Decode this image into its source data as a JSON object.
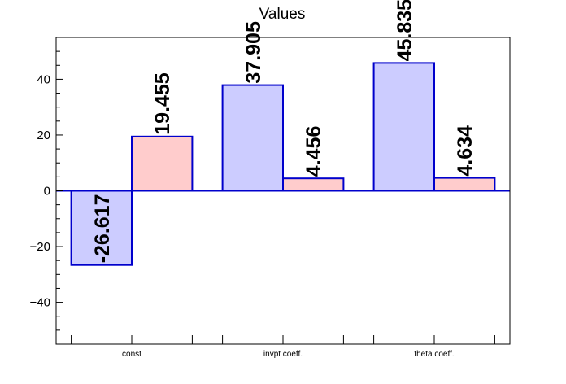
{
  "chart_data": {
    "type": "bar",
    "title": "Values",
    "xlabel": "",
    "ylabel": "",
    "categories": [
      "const",
      "invpt coeff.",
      "theta coeff."
    ],
    "series": [
      {
        "values": [
          -26.617,
          37.905,
          45.835
        ],
        "labels": [
          "-26.617",
          "37.905",
          "45.835"
        ]
      },
      {
        "values": [
          19.455,
          4.456,
          4.634
        ],
        "labels": [
          "19.455",
          "4.456",
          "4.634"
        ]
      }
    ],
    "ylim": [
      -55,
      55
    ],
    "y_ticks": [
      -40,
      -20,
      0,
      20,
      40
    ],
    "y_tick_labels": [
      "−40",
      "−20",
      "0",
      "20",
      "40"
    ],
    "legend": "none",
    "grid": false
  },
  "colors": {
    "series_fills": [
      "#ccccff",
      "#ffcccc"
    ],
    "bar_outline": "#0000cc",
    "zero_line": "#0000cc",
    "axis": "#000000"
  }
}
